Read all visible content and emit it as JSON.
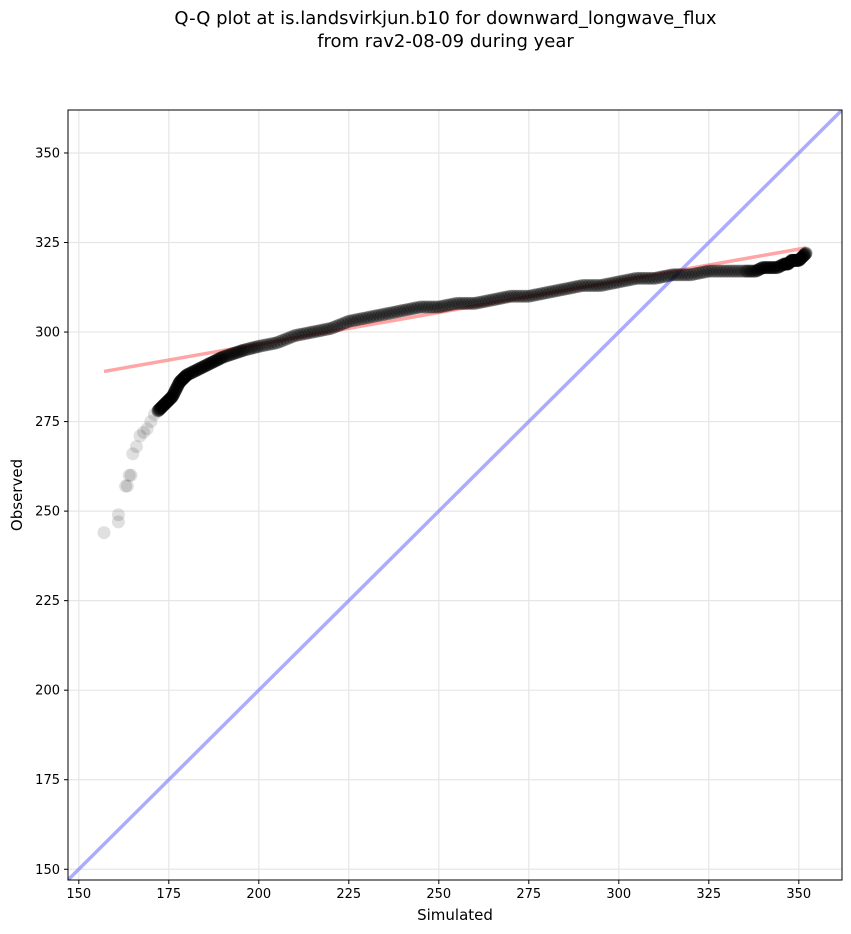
{
  "chart_data": {
    "type": "scatter",
    "title": "Q-Q plot at is.landsvirkjun.b10 for downward_longwave_flux",
    "subtitle": "from rav2-08-09 during year",
    "xlabel": "Simulated",
    "ylabel": "Observed",
    "xlim": [
      147,
      362
    ],
    "ylim": [
      147,
      362
    ],
    "xticks": [
      150,
      175,
      200,
      225,
      250,
      275,
      300,
      325,
      350
    ],
    "yticks": [
      150,
      175,
      200,
      225,
      250,
      275,
      300,
      325,
      350
    ],
    "grid": true,
    "colors": {
      "points": "#000000",
      "fit_line": "#ff7f7f",
      "identity_line": "#7f7fff",
      "grid": "#e6e6e6"
    },
    "quantiles": {
      "x": [
        157,
        161,
        161,
        163,
        163.5,
        164,
        164.5,
        165,
        166,
        167,
        168,
        169,
        170,
        171,
        172,
        173,
        174,
        175,
        176,
        177,
        178,
        179,
        180,
        182,
        184,
        186,
        188,
        190,
        193,
        196,
        200,
        205,
        210,
        215,
        220,
        225,
        230,
        235,
        240,
        245,
        250,
        255,
        260,
        265,
        270,
        275,
        280,
        285,
        290,
        295,
        300,
        305,
        310,
        315,
        320,
        325,
        330,
        335,
        338,
        340,
        342,
        344,
        346,
        347,
        348,
        349,
        350,
        351,
        352
      ],
      "y": [
        244,
        247,
        249,
        257,
        257,
        260,
        260,
        266,
        268,
        271,
        272,
        273,
        275,
        277,
        278,
        279,
        280,
        281,
        282,
        284,
        286,
        287,
        288,
        289,
        290,
        291,
        292,
        293,
        294,
        295,
        296,
        297,
        299,
        300,
        301,
        303,
        304,
        305,
        306,
        307,
        307,
        308,
        308,
        309,
        310,
        310,
        311,
        312,
        313,
        313,
        314,
        315,
        315,
        316,
        316,
        317,
        317,
        317,
        317,
        318,
        318,
        318,
        319,
        319,
        320,
        320,
        320,
        321,
        322
      ]
    },
    "fit_line": {
      "x": [
        157,
        352
      ],
      "y": [
        289,
        323.5
      ]
    },
    "identity_line": {
      "x": [
        147,
        362
      ],
      "y": [
        147,
        362
      ]
    }
  }
}
